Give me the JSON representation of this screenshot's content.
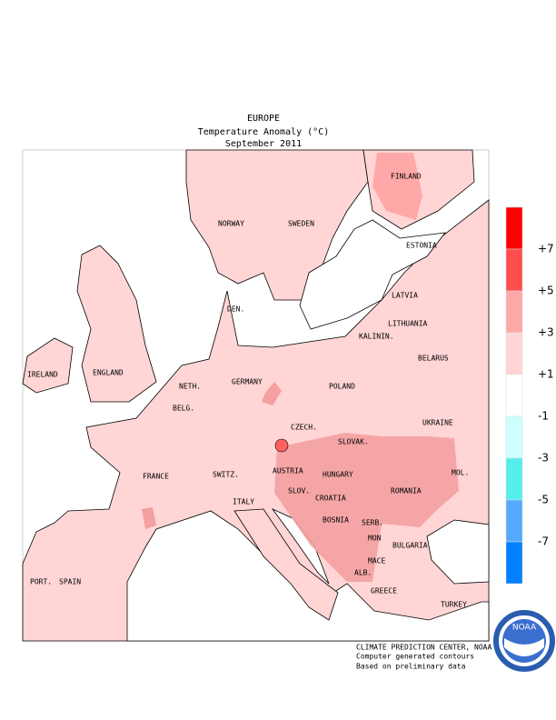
{
  "header": {
    "title": "EUROPE",
    "subtitle": "Temperature Anomaly (°C)",
    "period": "September 2011"
  },
  "labels": [
    "FINLAND",
    "NORWAY",
    "SWEDEN",
    "ESTONIA",
    "LATVIA",
    "DEN.",
    "LITHUANIA",
    "KALININ.",
    "IRELAND",
    "ENGLAND",
    "BELARUS",
    "NETH.",
    "GERMANY",
    "POLAND",
    "BELG.",
    "UKRAINE",
    "CZECH.",
    "SLOVAK.",
    "FRANCE",
    "SWITZ.",
    "AUSTRIA",
    "HUNGARY",
    "MOL.",
    "ROMANIA",
    "ITALY",
    "SLOV.",
    "CROATIA",
    "BOSNIA",
    "SERB.",
    "MON",
    "BULGARIA",
    "MACE",
    "PORT.",
    "SPAIN",
    "ALB.",
    "GREECE",
    "TURKEY"
  ],
  "legend": [
    "+7",
    "+5",
    "+3",
    "+1",
    "-1",
    "-3",
    "-5",
    "-7"
  ],
  "credits": [
    "CLIMATE PREDICTION CENTER, NOAA",
    "Computer generated contours",
    "Based on preliminary data"
  ],
  "logo": "NOAA"
}
